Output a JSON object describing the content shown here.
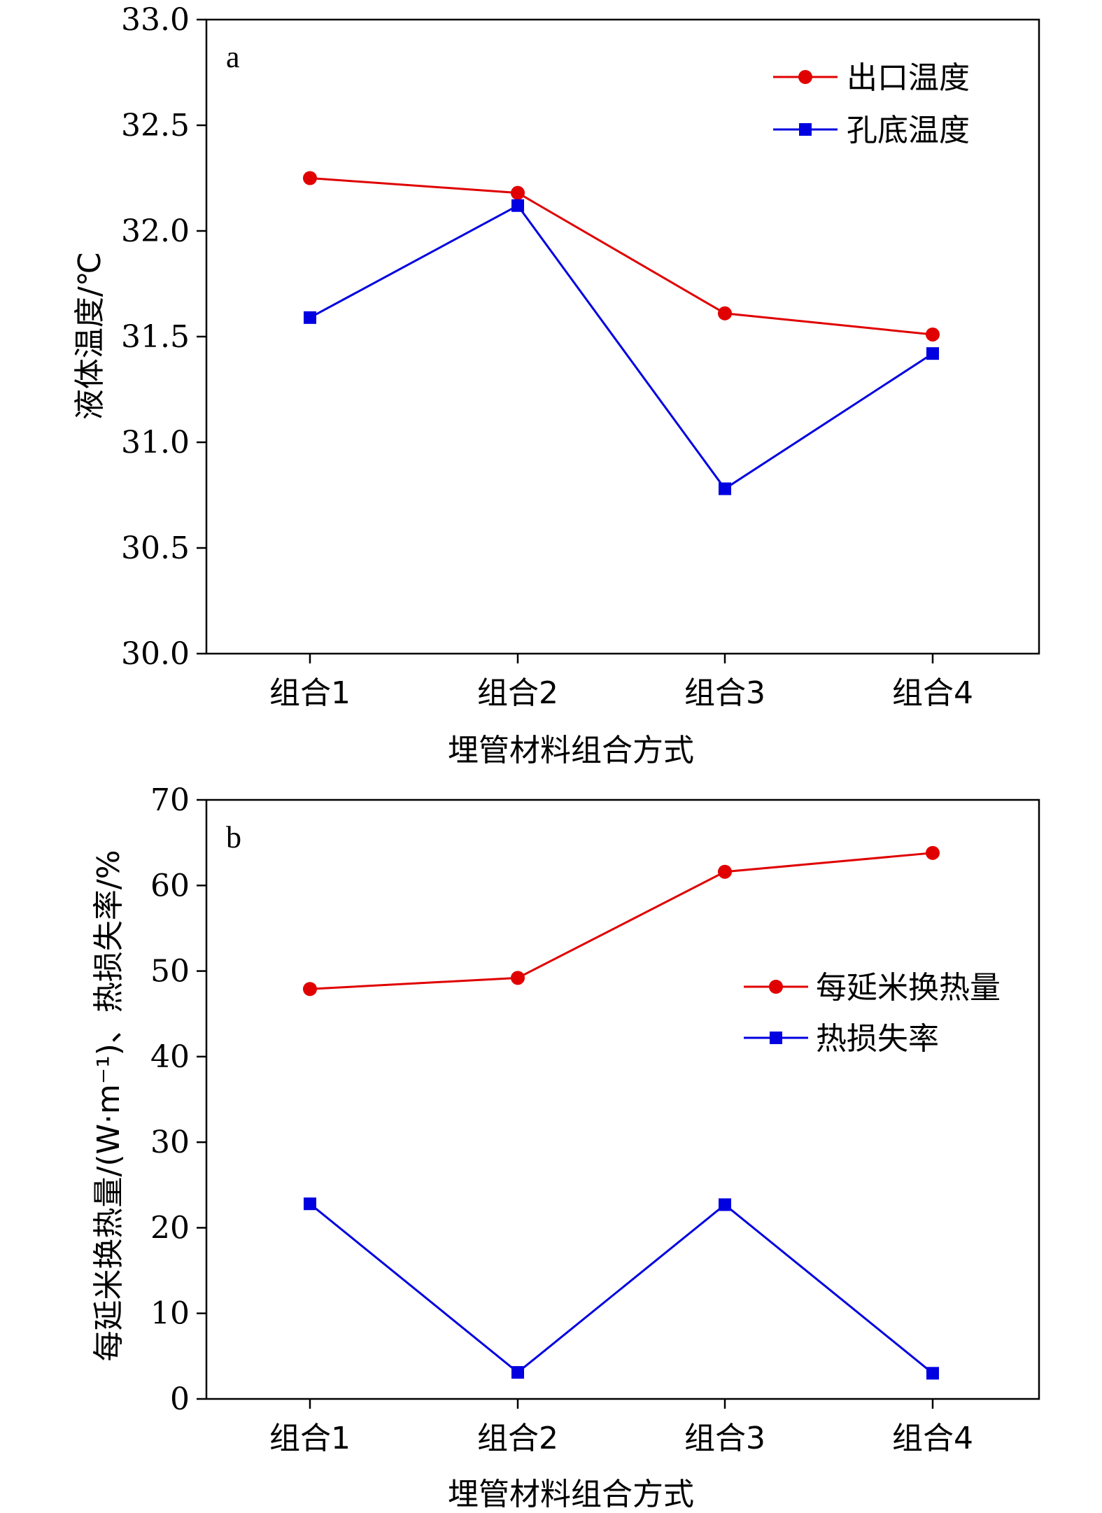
{
  "chart_data": [
    {
      "type": "line",
      "panel_label": "a",
      "categories": [
        "组合1",
        "组合2",
        "组合3",
        "组合4"
      ],
      "series": [
        {
          "name": "出口温度",
          "color": "#e00000",
          "marker": "circle",
          "values": [
            32.25,
            32.18,
            31.61,
            31.51
          ]
        },
        {
          "name": "孔底温度",
          "color": "#0000e0",
          "marker": "square",
          "values": [
            31.59,
            32.12,
            30.78,
            31.42
          ]
        }
      ],
      "xlabel": "埋管材料组合方式",
      "ylabel": "液体温度/℃",
      "ylim": [
        30.0,
        33.0
      ],
      "yticks": [
        "30.0",
        "30.5",
        "31.0",
        "31.5",
        "32.0",
        "32.5",
        "33.0"
      ],
      "legend_position": "top-right",
      "grid": false
    },
    {
      "type": "line",
      "panel_label": "b",
      "categories": [
        "组合1",
        "组合2",
        "组合3",
        "组合4"
      ],
      "series": [
        {
          "name": "每延米换热量",
          "color": "#e00000",
          "marker": "circle",
          "values": [
            47.9,
            49.2,
            61.6,
            63.8
          ]
        },
        {
          "name": "热损失率",
          "color": "#0000e0",
          "marker": "square",
          "values": [
            22.8,
            3.1,
            22.7,
            3.0
          ]
        }
      ],
      "xlabel": "埋管材料组合方式",
      "ylabel": "每延米换热量/(W·m⁻¹)、热损失率/%",
      "ylim": [
        0,
        70
      ],
      "yticks": [
        "0",
        "10",
        "20",
        "30",
        "40",
        "50",
        "60",
        "70"
      ],
      "legend_position": "center-right",
      "grid": false
    }
  ]
}
